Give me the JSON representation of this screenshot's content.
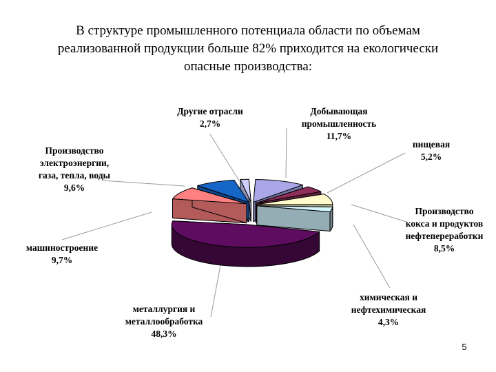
{
  "title": "В структуре промышленного потенциала области по объемам\nреализованной продукции больше 82% приходится на екологически\nопасные производства:",
  "page_number": "5",
  "chart_data": {
    "type": "pie",
    "title": "",
    "slices": [
      {
        "name": "Добывающая промышленность",
        "label_lines": [
          "Добывающая",
          "промышленность"
        ],
        "value": 11.7,
        "value_label": "11,7%",
        "color": "#A9A7E8",
        "exploded": false
      },
      {
        "name": "пищевая",
        "label_lines": [
          "пищевая"
        ],
        "value": 5.2,
        "value_label": "5,2%",
        "color": "#8E2D58",
        "exploded": false
      },
      {
        "name": "Производство кокса и продуктов нефтепереработки",
        "label_lines": [
          "Производство",
          "кокса и продуктов",
          "нефтепереработки"
        ],
        "value": 8.5,
        "value_label": "8,5%",
        "color": "#FFFBCB",
        "exploded": false
      },
      {
        "name": "химическая и нефтехимическая",
        "label_lines": [
          "химическая и",
          "нефтехимическая"
        ],
        "value": 4.3,
        "value_label": "4,3%",
        "color": "#D4F6FF",
        "exploded": false
      },
      {
        "name": "металлургия и металлообработка",
        "label_lines": [
          "металлургия и",
          "металлообработка"
        ],
        "value": 48.3,
        "value_label": "48,3%",
        "color": "#5E0C5F",
        "exploded": true
      },
      {
        "name": "машиностроение",
        "label_lines": [
          "машиностроение"
        ],
        "value": 9.7,
        "value_label": "9,7%",
        "color": "#FF8080",
        "exploded": false
      },
      {
        "name": "Производство электроэнергии, газа, тепла, воды",
        "label_lines": [
          "Производство",
          "электроэнергии,",
          "газа,  тепла, воды"
        ],
        "value": 9.6,
        "value_label": "9,6%",
        "color": "#1666C7",
        "exploded": false
      },
      {
        "name": "Другие отрасли",
        "label_lines": [
          "Другие отрасли"
        ],
        "value": 2.7,
        "value_label": "2,7%",
        "color": "#CFCFFF",
        "exploded": false
      }
    ]
  }
}
